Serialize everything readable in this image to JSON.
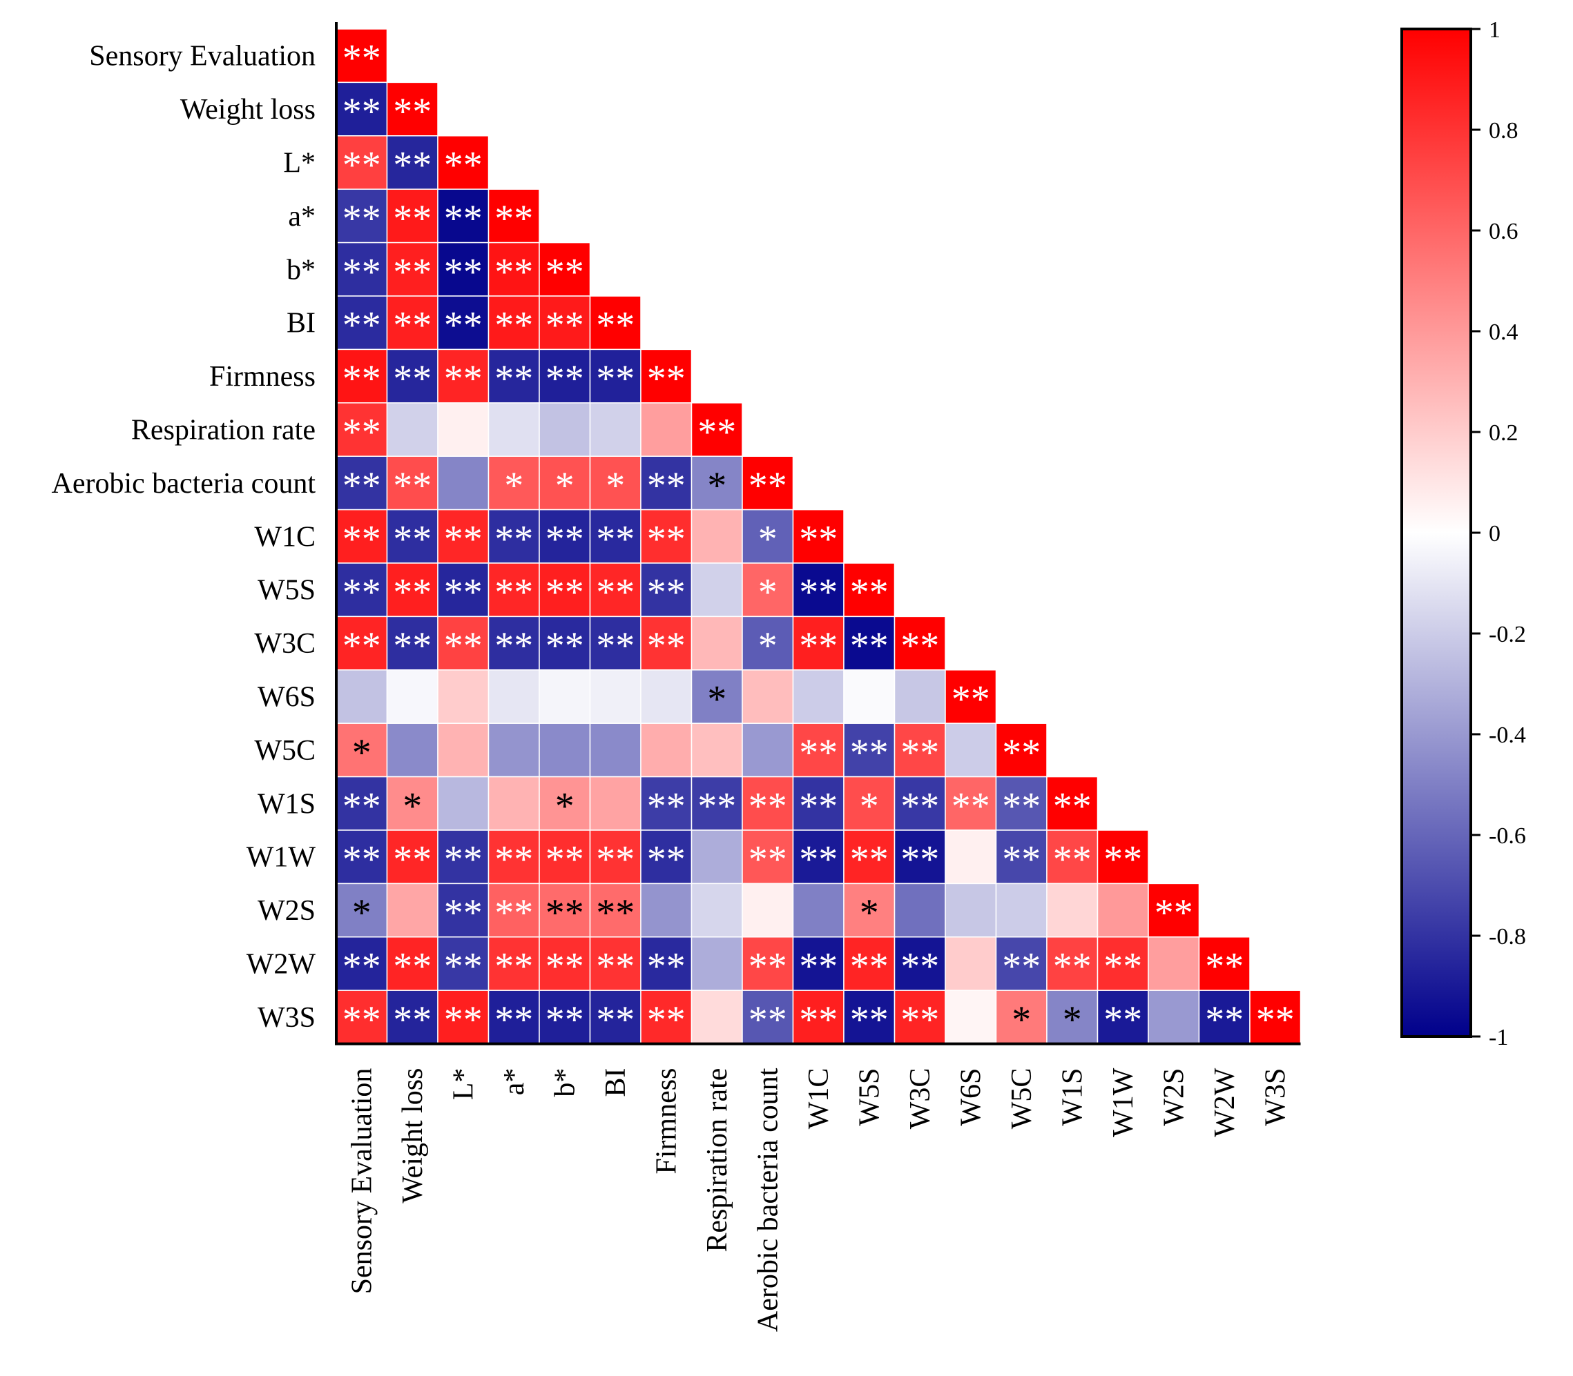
{
  "chart_data": {
    "type": "heatmap",
    "title": "",
    "xlabel": "",
    "ylabel": "",
    "shape": "lower-triangle correlation matrix",
    "labels": [
      "Sensory Evaluation",
      "Weight loss",
      "L*",
      "a*",
      "b*",
      "BI",
      "Firmness",
      "Respiration rate",
      "Aerobic bacteria count",
      "W1C",
      "W5S",
      "W3C",
      "W6S",
      "W5C",
      "W1S",
      "W1W",
      "W2S",
      "W2W",
      "W3S"
    ],
    "values": [
      [
        1
      ],
      [
        -0.88,
        1
      ],
      [
        0.75,
        -0.85,
        1
      ],
      [
        -0.78,
        0.9,
        -0.97,
        1
      ],
      [
        -0.82,
        0.88,
        -0.97,
        0.92,
        1
      ],
      [
        -0.83,
        0.88,
        -0.95,
        0.9,
        0.9,
        1
      ],
      [
        0.92,
        -0.85,
        0.86,
        -0.85,
        -0.88,
        -0.87,
        1
      ],
      [
        0.8,
        -0.18,
        0.06,
        -0.12,
        -0.24,
        -0.18,
        0.38,
        1
      ],
      [
        -0.8,
        0.7,
        -0.48,
        0.65,
        0.68,
        0.68,
        -0.8,
        -0.48,
        1
      ],
      [
        0.88,
        -0.82,
        0.85,
        -0.82,
        -0.86,
        -0.84,
        0.82,
        0.3,
        -0.62,
        1
      ],
      [
        -0.82,
        0.88,
        -0.85,
        0.85,
        0.88,
        0.85,
        -0.8,
        -0.18,
        0.6,
        -0.96,
        1
      ],
      [
        0.86,
        -0.82,
        0.74,
        -0.82,
        -0.84,
        -0.82,
        0.8,
        0.28,
        -0.64,
        0.88,
        -0.96,
        1
      ],
      [
        -0.24,
        -0.03,
        0.2,
        -0.1,
        -0.04,
        -0.06,
        -0.1,
        -0.5,
        0.26,
        -0.2,
        -0.02,
        -0.22,
        1
      ],
      [
        0.55,
        -0.46,
        0.3,
        -0.42,
        -0.46,
        -0.46,
        0.32,
        0.25,
        -0.4,
        0.72,
        -0.74,
        0.72,
        -0.2,
        1
      ],
      [
        -0.8,
        0.45,
        -0.28,
        0.3,
        0.42,
        0.36,
        -0.76,
        -0.76,
        0.7,
        -0.8,
        0.7,
        -0.78,
        0.6,
        -0.66,
        1
      ],
      [
        -0.82,
        0.85,
        -0.8,
        0.8,
        0.82,
        0.8,
        -0.82,
        -0.32,
        0.66,
        -0.9,
        0.86,
        -0.92,
        0.06,
        -0.72,
        0.72,
        1
      ],
      [
        -0.5,
        0.35,
        -0.8,
        0.62,
        0.58,
        0.58,
        -0.42,
        -0.16,
        0.06,
        -0.5,
        0.5,
        -0.56,
        -0.22,
        -0.2,
        0.16,
        0.4,
        1
      ],
      [
        -0.86,
        0.86,
        -0.78,
        0.8,
        0.82,
        0.8,
        -0.84,
        -0.32,
        0.72,
        -0.92,
        0.86,
        -0.92,
        0.2,
        -0.72,
        0.74,
        0.82,
        0.38,
        1
      ],
      [
        0.82,
        -0.86,
        0.88,
        -0.88,
        -0.88,
        -0.86,
        0.84,
        0.14,
        -0.66,
        0.88,
        -0.92,
        0.86,
        0.04,
        0.52,
        -0.48,
        -0.9,
        -0.4,
        -0.9,
        1
      ]
    ],
    "significance": [
      [
        "**"
      ],
      [
        "**",
        "**"
      ],
      [
        "**",
        "**",
        "**"
      ],
      [
        "**",
        "**",
        "**",
        "**"
      ],
      [
        "**",
        "**",
        "**",
        "**",
        "**"
      ],
      [
        "**",
        "**",
        "**",
        "**",
        "**",
        "**"
      ],
      [
        "**",
        "**",
        "**",
        "**",
        "**",
        "**",
        "**"
      ],
      [
        "**",
        "",
        "",
        "",
        "",
        "",
        "",
        "**"
      ],
      [
        "**",
        "**",
        "",
        "*",
        "*",
        "*",
        "**",
        "*",
        "**"
      ],
      [
        "**",
        "**",
        "**",
        "**",
        "**",
        "**",
        "**",
        "",
        "*",
        "**"
      ],
      [
        "**",
        "**",
        "**",
        "**",
        "**",
        "**",
        "**",
        "",
        "*",
        "**",
        "**"
      ],
      [
        "**",
        "**",
        "**",
        "**",
        "**",
        "**",
        "**",
        "",
        "*",
        "**",
        "**",
        "**"
      ],
      [
        "",
        "",
        "",
        "",
        "",
        "",
        "",
        "*",
        "",
        "",
        "",
        "",
        "**"
      ],
      [
        "*",
        "",
        "",
        "",
        "",
        "",
        "",
        "",
        "",
        "**",
        "**",
        "**",
        "",
        "**"
      ],
      [
        "**",
        "*",
        "",
        "",
        "*",
        "",
        "**",
        "**",
        "**",
        "**",
        "*",
        "**",
        "**",
        "**",
        "**"
      ],
      [
        "**",
        "**",
        "**",
        "**",
        "**",
        "**",
        "**",
        "",
        "**",
        "**",
        "**",
        "**",
        "",
        "**",
        "**",
        "**"
      ],
      [
        "*",
        "",
        "**",
        "**",
        "**",
        "**",
        "",
        "",
        "",
        "",
        "*",
        "",
        "",
        "",
        "",
        "",
        "**"
      ],
      [
        "**",
        "**",
        "**",
        "**",
        "**",
        "**",
        "**",
        "",
        "**",
        "**",
        "**",
        "**",
        "",
        "**",
        "**",
        "**",
        "",
        "**"
      ],
      [
        "**",
        "**",
        "**",
        "**",
        "**",
        "**",
        "**",
        "",
        "**",
        "**",
        "**",
        "**",
        "",
        "*",
        "*",
        "**",
        "",
        "**",
        "**"
      ]
    ],
    "colorbar": {
      "range": [
        -1,
        1
      ],
      "ticks": [
        "1",
        "0.8",
        "0.6",
        "0.4",
        "0.2",
        "0",
        "-0.2",
        "-0.4",
        "-0.6",
        "-0.8",
        "-1"
      ]
    },
    "colors": {
      "positive": "#ff0000",
      "zero": "#ffffff",
      "negative": "#00008b",
      "grid": "#ffffff",
      "axis": "#000000"
    }
  }
}
